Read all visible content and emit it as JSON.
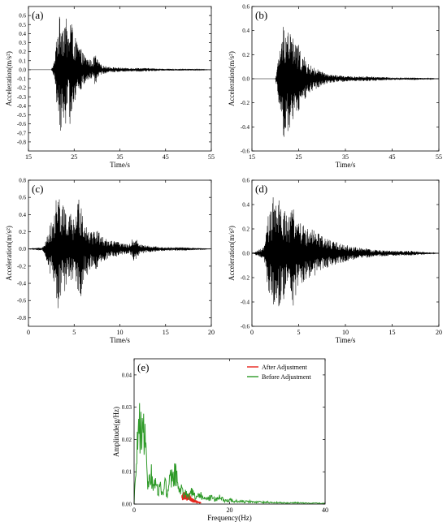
{
  "chart_data": [
    {
      "panel": "(a)",
      "type": "line",
      "xlabel": "Time/s",
      "ylabel": "Acceleration(m/s²)",
      "xlim": [
        15,
        55
      ],
      "ylim": [
        -0.9,
        0.7
      ],
      "xticks": [
        15,
        25,
        35,
        45,
        55
      ],
      "yticks": [
        -0.8,
        -0.7,
        -0.6,
        -0.5,
        -0.4,
        -0.3,
        -0.2,
        -0.1,
        0.0,
        0.1,
        0.2,
        0.3,
        0.4,
        0.5,
        0.6
      ],
      "ytick_labels": [
        "-0.8",
        "-0.7",
        "-0.6",
        "-0.5",
        "-0.4",
        "-0.3",
        "-0.2",
        "-0.1",
        "0.0",
        "0.1",
        "0.2",
        "0.3",
        "0.4",
        "0.5",
        "0.6"
      ],
      "series": [
        {
          "color": "#000000",
          "x": [
            20,
            20.8,
            21.2,
            21.6,
            22.0,
            22.3,
            22.6,
            22.9,
            23.2,
            23.5,
            23.8,
            24.1,
            24.4,
            24.7,
            25.0,
            25.4,
            25.8,
            26.3,
            26.8,
            27.5,
            28.2,
            29.0,
            29.6,
            30.2,
            31,
            33,
            36,
            40,
            45,
            50,
            55
          ],
          "y": [
            0.0,
            0.12,
            -0.45,
            0.5,
            -0.7,
            0.6,
            -0.55,
            0.63,
            -0.6,
            0.45,
            -0.4,
            0.62,
            -0.68,
            0.4,
            -0.35,
            0.35,
            -0.3,
            0.25,
            -0.2,
            0.15,
            -0.12,
            0.1,
            0.18,
            -0.1,
            0.05,
            -0.03,
            0.02,
            -0.02,
            0.01,
            -0.01,
            0.0
          ]
        }
      ]
    },
    {
      "panel": "(b)",
      "type": "line",
      "xlabel": "Time/s",
      "ylabel": "Acceleration(m/s²)",
      "xlim": [
        15,
        55
      ],
      "ylim": [
        -0.6,
        0.6
      ],
      "xticks": [
        15,
        25,
        35,
        45,
        55
      ],
      "yticks": [
        -0.6,
        -0.4,
        -0.2,
        0.0,
        0.2,
        0.4,
        0.6
      ],
      "ytick_labels": [
        "-0.6",
        "-0.4",
        "-0.2",
        "0.0",
        "0.2",
        "0.4",
        "0.6"
      ],
      "series": [
        {
          "color": "#000000",
          "x": [
            20,
            20.6,
            21.0,
            21.4,
            21.8,
            22.2,
            22.6,
            23.0,
            23.4,
            23.8,
            24.2,
            24.6,
            25.0,
            25.5,
            26.0,
            26.6,
            27.2,
            28.0,
            29.0,
            30.0,
            31.0,
            33,
            36,
            40,
            45,
            50,
            55
          ],
          "y": [
            0.0,
            0.15,
            -0.3,
            0.32,
            -0.5,
            0.45,
            -0.45,
            0.42,
            -0.4,
            0.35,
            -0.3,
            0.3,
            -0.28,
            0.22,
            -0.2,
            0.15,
            -0.12,
            0.1,
            -0.08,
            0.06,
            -0.04,
            0.03,
            -0.02,
            0.02,
            -0.01,
            0.01,
            0.0
          ]
        }
      ]
    },
    {
      "panel": "(c)",
      "type": "line",
      "xlabel": "Time/s",
      "ylabel": "Acceleration(m/s²)",
      "xlim": [
        0,
        20
      ],
      "ylim": [
        -0.9,
        0.8
      ],
      "xticks": [
        0,
        5,
        10,
        15,
        20
      ],
      "yticks": [
        -0.8,
        -0.6,
        -0.4,
        -0.2,
        0.0,
        0.2,
        0.4,
        0.6,
        0.8
      ],
      "ytick_labels": [
        "-0.8",
        "-0.6",
        "-0.4",
        "-0.2",
        "0.0",
        "0.2",
        "0.4",
        "0.6",
        "0.8"
      ],
      "series": [
        {
          "color": "#000000",
          "x": [
            0,
            1.5,
            2.0,
            2.4,
            2.8,
            3.1,
            3.4,
            3.7,
            4.0,
            4.3,
            4.6,
            4.9,
            5.2,
            5.5,
            5.8,
            6.1,
            6.5,
            7.0,
            7.5,
            8.0,
            8.6,
            9.2,
            10.0,
            11.0,
            11.5,
            11.8,
            12.2,
            13,
            15,
            17,
            20
          ],
          "y": [
            0.0,
            0.02,
            0.15,
            -0.3,
            0.35,
            -0.75,
            0.62,
            -0.5,
            0.55,
            -0.3,
            0.45,
            -0.35,
            0.4,
            -0.65,
            0.6,
            -0.3,
            0.3,
            -0.2,
            0.25,
            -0.15,
            0.12,
            -0.1,
            0.08,
            -0.05,
            0.14,
            -0.12,
            0.06,
            -0.04,
            0.02,
            -0.02,
            0.0
          ]
        }
      ]
    },
    {
      "panel": "(d)",
      "type": "line",
      "xlabel": "Time/s",
      "ylabel": "Acceleration(m/s²)",
      "xlim": [
        0,
        20
      ],
      "ylim": [
        -0.6,
        0.6
      ],
      "xticks": [
        0,
        5,
        10,
        15,
        20
      ],
      "yticks": [
        -0.6,
        -0.4,
        -0.2,
        0.0,
        0.2,
        0.4,
        0.6
      ],
      "ytick_labels": [
        "-0.6",
        "-0.4",
        "-0.2",
        "0.0",
        "0.2",
        "0.4",
        "0.6"
      ],
      "series": [
        {
          "color": "#000000",
          "x": [
            0,
            1.3,
            1.7,
            2.0,
            2.3,
            2.6,
            2.9,
            3.2,
            3.5,
            3.8,
            4.1,
            4.4,
            4.7,
            5.0,
            5.4,
            5.8,
            6.3,
            6.8,
            7.4,
            8.0,
            8.8,
            9.6,
            10.5,
            11.5,
            13,
            15,
            17,
            20
          ],
          "y": [
            0.0,
            0.05,
            -0.3,
            0.35,
            -0.5,
            0.4,
            -0.45,
            0.38,
            -0.4,
            0.3,
            -0.3,
            0.45,
            -0.35,
            0.3,
            -0.25,
            0.22,
            -0.2,
            0.18,
            -0.15,
            0.12,
            -0.1,
            0.08,
            -0.06,
            0.05,
            -0.03,
            0.02,
            -0.02,
            0.0
          ]
        }
      ]
    },
    {
      "panel": "(e)",
      "type": "line",
      "xlabel": "Frequency(Hz)",
      "ylabel": "Amplitude(g/Hz)",
      "xlim": [
        0,
        40
      ],
      "ylim": [
        0,
        0.045
      ],
      "xticks": [
        0,
        20,
        40
      ],
      "yticks": [
        0.0,
        0.01,
        0.02,
        0.03,
        0.04
      ],
      "ytick_labels": [
        "0.00",
        "0.01",
        "0.02",
        "0.03",
        "0.04"
      ],
      "legend": "top-right",
      "series": [
        {
          "name": "After Adjustment",
          "color": "#e8241c",
          "x": [
            10.0,
            10.5,
            11.0,
            11.5,
            12.0,
            12.5,
            13.0,
            13.5,
            14.0
          ],
          "y": [
            0.003,
            0.004,
            0.0025,
            0.0035,
            0.002,
            0.0015,
            0.0012,
            0.0008,
            0.0005
          ]
        },
        {
          "name": "Before Adjustment",
          "color": "#2e9a28",
          "x": [
            0,
            0.5,
            1.0,
            1.5,
            2.0,
            2.5,
            3.0,
            3.5,
            4.0,
            4.5,
            5.0,
            5.5,
            6.0,
            6.5,
            7.0,
            7.5,
            8.0,
            8.5,
            9.0,
            9.5,
            10.0,
            10.5,
            11.0,
            11.5,
            12.0,
            12.5,
            13.0,
            14.0,
            15.0,
            16.0,
            17.0,
            18.0,
            19.0,
            20.0,
            21.0,
            22.0,
            23.0,
            24.0,
            25.0,
            26.0,
            27.0,
            28.0,
            29.0,
            30.0,
            32.0,
            34.0,
            36.0,
            38.0,
            40.0
          ],
          "y": [
            0.0,
            0.03,
            0.035,
            0.04,
            0.033,
            0.02,
            0.008,
            0.015,
            0.006,
            0.012,
            0.004,
            0.01,
            0.005,
            0.009,
            0.004,
            0.011,
            0.013,
            0.015,
            0.01,
            0.008,
            0.006,
            0.005,
            0.004,
            0.003,
            0.006,
            0.004,
            0.003,
            0.004,
            0.002,
            0.003,
            0.002,
            0.003,
            0.0015,
            0.002,
            0.0012,
            0.0015,
            0.001,
            0.0012,
            0.0008,
            0.001,
            0.0008,
            0.0009,
            0.0006,
            0.0007,
            0.0005,
            0.0006,
            0.0004,
            0.0004,
            0.0003
          ]
        }
      ]
    }
  ]
}
